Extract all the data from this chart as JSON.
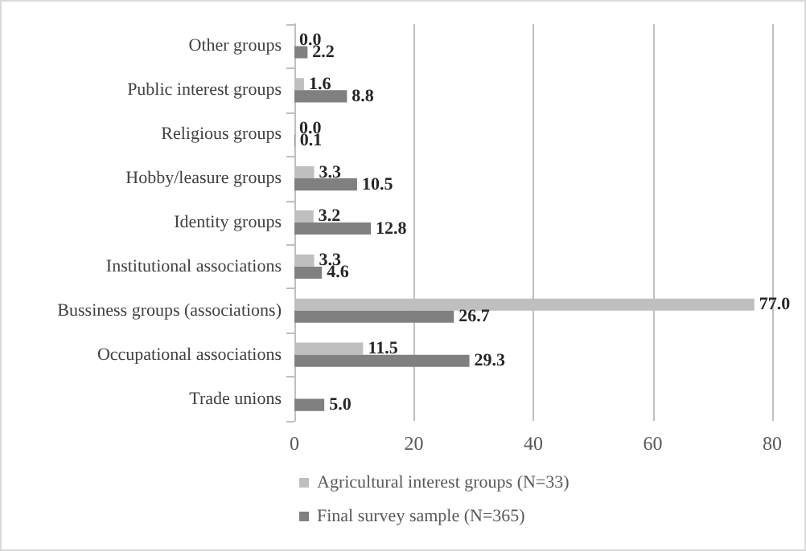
{
  "chart_data": {
    "type": "bar",
    "orientation": "horizontal",
    "categories": [
      "Other groups",
      "Public interest groups",
      "Religious groups",
      "Hobby/leasure groups",
      "Identity groups",
      "Institutional associations",
      "Bussiness groups (associations)",
      "Occupational associations",
      "Trade unions"
    ],
    "series": [
      {
        "name": "Agricultural interest groups (N=33)",
        "color": "#bfbfbf",
        "values": [
          0.0,
          1.6,
          0.0,
          3.3,
          3.2,
          3.3,
          77.0,
          11.5,
          null
        ],
        "value_labels": [
          "0.0",
          "1.6",
          "0.0",
          "3.3",
          "3.2",
          "3.3",
          "77.0",
          "11.5",
          null
        ]
      },
      {
        "name": "Final survey sample (N=365)",
        "color": "#808080",
        "values": [
          2.2,
          8.8,
          0.1,
          10.5,
          12.8,
          4.6,
          26.7,
          29.3,
          5.0
        ],
        "value_labels": [
          "2.2",
          "8.8",
          "0.1",
          "10.5",
          "12.8",
          "4.6",
          "26.7",
          "29.3",
          "5.0"
        ]
      }
    ],
    "xlim": [
      0,
      80
    ],
    "xticks": [
      0,
      20,
      40,
      60,
      80
    ],
    "grid": "x",
    "legend": "bottom"
  }
}
